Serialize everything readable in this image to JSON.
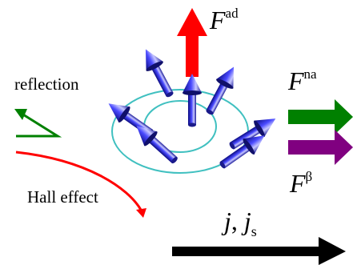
{
  "labels": {
    "reflection": "reflection",
    "hall_effect": "Hall effect",
    "force_adiabatic_base": "F",
    "force_adiabatic_sup": "ad",
    "force_nonadiabatic_base": "F",
    "force_nonadiabatic_sup": "na",
    "force_beta_base": "F",
    "force_beta_sup": "β",
    "current_j": "j",
    "current_sep": ", ",
    "current_js_base": "j",
    "current_js_sub": "s"
  },
  "colors": {
    "adiabatic_arrow": "#ff0000",
    "nonadiabatic_arrow": "#008000",
    "beta_arrow": "#800080",
    "current_arrow": "#000000",
    "reflection_path": "#008000",
    "hall_path": "#ff0000",
    "vortex_rings": "#40c0c0",
    "spin_arrows": "#2a2ae0"
  }
}
